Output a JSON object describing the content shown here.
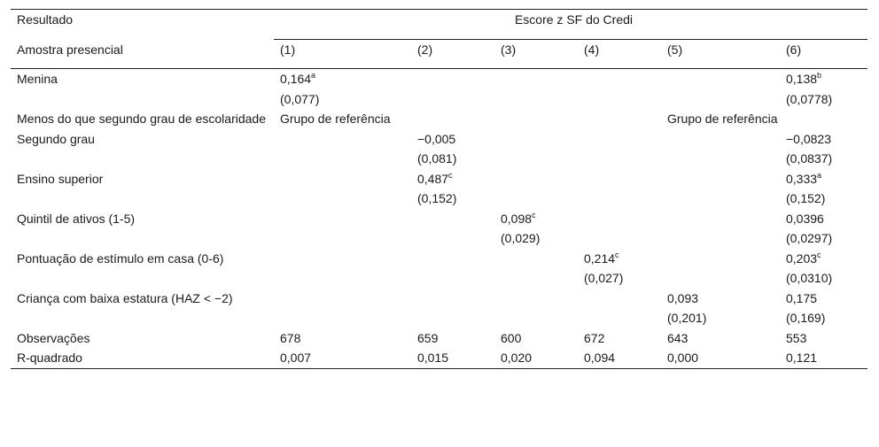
{
  "header": {
    "outcome_label": "Resultado",
    "group_title": "Escore z SF do Credi",
    "sample_label": "Amostra presencial",
    "columns": [
      "(1)",
      "(2)",
      "(3)",
      "(4)",
      "(5)",
      "(6)"
    ]
  },
  "rows": [
    {
      "label": "Menina",
      "cells": [
        [
          "0,164",
          "a"
        ],
        [
          "",
          ""
        ],
        [
          "",
          ""
        ],
        [
          "",
          ""
        ],
        [
          "",
          ""
        ],
        [
          "0,138",
          "b"
        ]
      ]
    },
    {
      "label": "",
      "cells": [
        [
          "(0,077)",
          ""
        ],
        [
          "",
          ""
        ],
        [
          "",
          ""
        ],
        [
          "",
          ""
        ],
        [
          "",
          ""
        ],
        [
          "(0,0778)",
          ""
        ]
      ]
    },
    {
      "label": "Menos do que segundo grau de escolaridade",
      "cells": [
        [
          "Grupo de referência",
          ""
        ],
        [
          "",
          ""
        ],
        [
          "",
          ""
        ],
        [
          "",
          ""
        ],
        [
          "Grupo de referência",
          ""
        ],
        [
          "",
          ""
        ]
      ]
    },
    {
      "label": "Segundo grau",
      "cells": [
        [
          "",
          ""
        ],
        [
          "−0,005",
          ""
        ],
        [
          "",
          ""
        ],
        [
          "",
          ""
        ],
        [
          "",
          ""
        ],
        [
          "−0,0823",
          ""
        ]
      ]
    },
    {
      "label": "",
      "cells": [
        [
          "",
          ""
        ],
        [
          "(0,081)",
          ""
        ],
        [
          "",
          ""
        ],
        [
          "",
          ""
        ],
        [
          "",
          ""
        ],
        [
          "(0,0837)",
          ""
        ]
      ]
    },
    {
      "label": "Ensino superior",
      "cells": [
        [
          "",
          ""
        ],
        [
          "0,487",
          "c"
        ],
        [
          "",
          ""
        ],
        [
          "",
          ""
        ],
        [
          "",
          ""
        ],
        [
          "0,333",
          "a"
        ]
      ]
    },
    {
      "label": "",
      "cells": [
        [
          "",
          ""
        ],
        [
          "(0,152)",
          ""
        ],
        [
          "",
          ""
        ],
        [
          "",
          ""
        ],
        [
          "",
          ""
        ],
        [
          "(0,152)",
          ""
        ]
      ]
    },
    {
      "label": "Quintil de ativos (1-5)",
      "cells": [
        [
          "",
          ""
        ],
        [
          "",
          ""
        ],
        [
          "0,098",
          "c"
        ],
        [
          "",
          ""
        ],
        [
          "",
          ""
        ],
        [
          "0,0396",
          ""
        ]
      ]
    },
    {
      "label": "",
      "cells": [
        [
          "",
          ""
        ],
        [
          "",
          ""
        ],
        [
          "(0,029)",
          ""
        ],
        [
          "",
          ""
        ],
        [
          "",
          ""
        ],
        [
          "(0,0297)",
          ""
        ]
      ]
    },
    {
      "label": "Pontuação de estímulo em casa (0-6)",
      "cells": [
        [
          "",
          ""
        ],
        [
          "",
          ""
        ],
        [
          "",
          ""
        ],
        [
          "0,214",
          "c"
        ],
        [
          "",
          ""
        ],
        [
          "0,203",
          "c"
        ]
      ]
    },
    {
      "label": "",
      "cells": [
        [
          "",
          ""
        ],
        [
          "",
          ""
        ],
        [
          "",
          ""
        ],
        [
          "(0,027)",
          ""
        ],
        [
          "",
          ""
        ],
        [
          "(0,0310)",
          ""
        ]
      ]
    },
    {
      "label": "Criança com baixa estatura (HAZ < −2)",
      "cells": [
        [
          "",
          ""
        ],
        [
          "",
          ""
        ],
        [
          "",
          ""
        ],
        [
          "",
          ""
        ],
        [
          "0,093",
          ""
        ],
        [
          "0,175",
          ""
        ]
      ]
    },
    {
      "label": "",
      "cells": [
        [
          "",
          ""
        ],
        [
          "",
          ""
        ],
        [
          "",
          ""
        ],
        [
          "",
          ""
        ],
        [
          "(0,201)",
          ""
        ],
        [
          "(0,169)",
          ""
        ]
      ]
    },
    {
      "label": "Observações",
      "cells": [
        [
          "678",
          ""
        ],
        [
          "659",
          ""
        ],
        [
          "600",
          ""
        ],
        [
          "672",
          ""
        ],
        [
          "643",
          ""
        ],
        [
          "553",
          ""
        ]
      ]
    },
    {
      "label": "R-quadrado",
      "cells": [
        [
          "0,007",
          ""
        ],
        [
          "0,015",
          ""
        ],
        [
          "0,020",
          ""
        ],
        [
          "0,094",
          ""
        ],
        [
          "0,000",
          ""
        ],
        [
          "0,121",
          ""
        ]
      ]
    }
  ]
}
